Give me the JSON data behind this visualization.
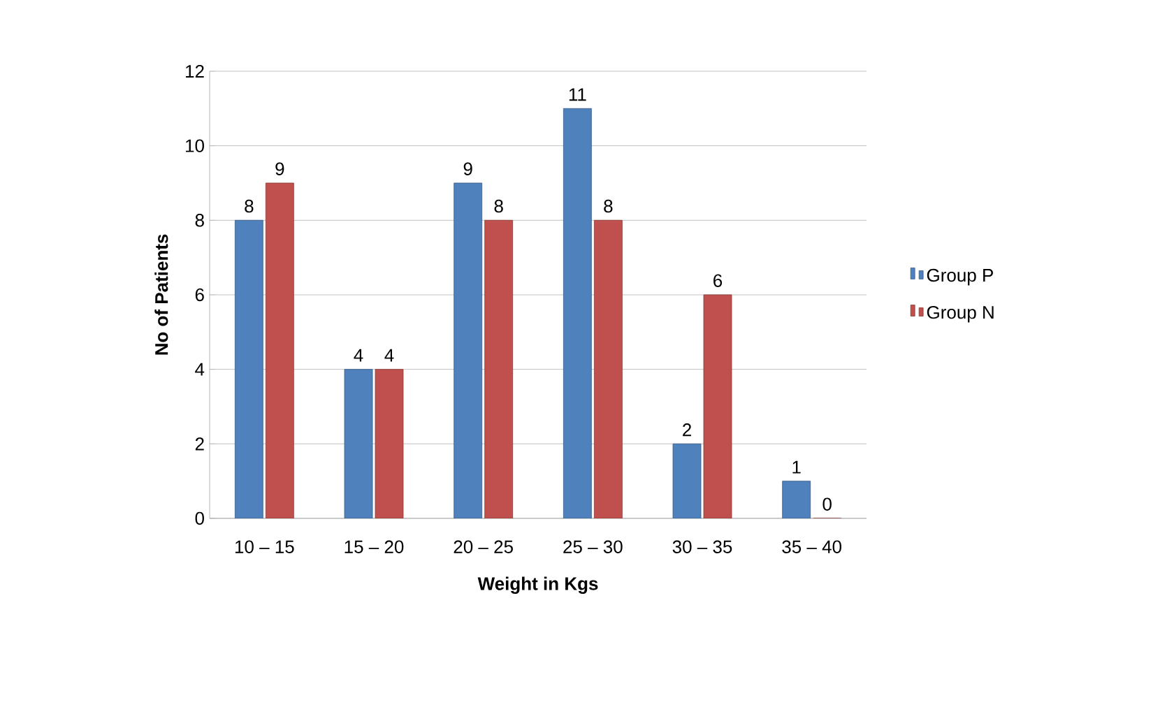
{
  "chart_data": {
    "type": "bar",
    "xlabel": "Weight in Kgs",
    "ylabel": "No of Patients",
    "categories": [
      "10 – 15",
      "15 – 20",
      "20 – 25",
      "25 – 30",
      "30 – 35",
      "35 – 40"
    ],
    "series": [
      {
        "name": "Group P",
        "color": "#4f81bd",
        "values": [
          8,
          4,
          9,
          11,
          2,
          1
        ]
      },
      {
        "name": "Group N",
        "color": "#c0504d",
        "values": [
          9,
          4,
          8,
          8,
          6,
          0
        ]
      }
    ],
    "ylim": [
      0,
      12
    ],
    "yticks": [
      0,
      2,
      4,
      6,
      8,
      10,
      12
    ],
    "grid": "y",
    "legend": "right",
    "data_labels": true
  }
}
